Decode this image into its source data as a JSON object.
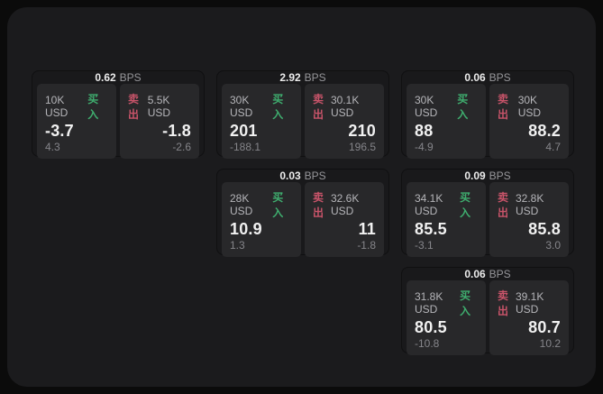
{
  "labels": {
    "bps": "BPS",
    "buy": "买入",
    "sell": "卖出"
  },
  "colors": {
    "background": "#0b0b0b",
    "panel": "#1b1b1d",
    "card": "#19191b",
    "cell": "#28282a",
    "buy_accent": "#3fae6f",
    "sell_accent": "#c9546a"
  },
  "cards": [
    {
      "bps": "0.62",
      "buy": {
        "amount": "10K USD",
        "value": "-3.7",
        "sub": "4.3"
      },
      "sell": {
        "amount": "5.5K USD",
        "value": "-1.8",
        "sub": "-2.6"
      }
    },
    {
      "bps": "2.92",
      "buy": {
        "amount": "30K USD",
        "value": "201",
        "sub": "-188.1"
      },
      "sell": {
        "amount": "30.1K USD",
        "value": "210",
        "sub": "196.5"
      }
    },
    {
      "bps": "0.06",
      "buy": {
        "amount": "30K USD",
        "value": "88",
        "sub": "-4.9"
      },
      "sell": {
        "amount": "30K USD",
        "value": "88.2",
        "sub": "4.7"
      }
    },
    {
      "bps": "0.03",
      "buy": {
        "amount": "28K USD",
        "value": "10.9",
        "sub": "1.3"
      },
      "sell": {
        "amount": "32.6K USD",
        "value": "11",
        "sub": "-1.8"
      }
    },
    {
      "bps": "0.09",
      "buy": {
        "amount": "34.1K USD",
        "value": "85.5",
        "sub": "-3.1"
      },
      "sell": {
        "amount": "32.8K USD",
        "value": "85.8",
        "sub": "3.0"
      }
    },
    {
      "bps": "0.06",
      "buy": {
        "amount": "31.8K USD",
        "value": "80.5",
        "sub": "-10.8"
      },
      "sell": {
        "amount": "39.1K USD",
        "value": "80.7",
        "sub": "10.2"
      }
    }
  ]
}
